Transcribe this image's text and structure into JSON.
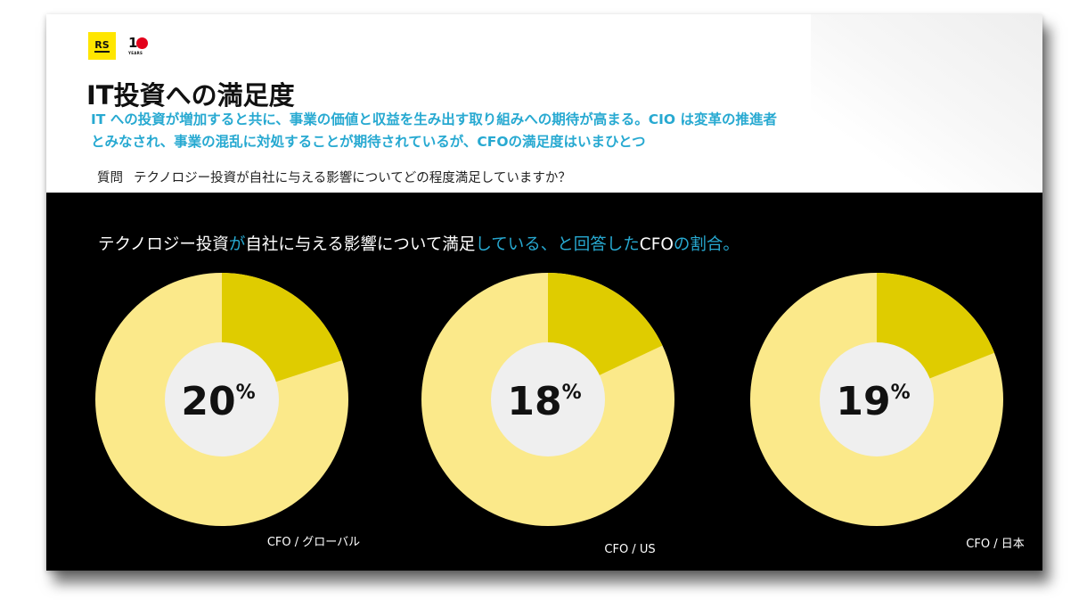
{
  "logo": {
    "rs_text": "RS",
    "anniversary_text": "1",
    "anniversary_sub": "YEARS"
  },
  "title": "IT投資への満足度",
  "subtitle_lines": [
    "IT への投資が増加すると共に、事業の価値と収益を生み出す取り組みへの期待が高まる。CIO は変革の推進者",
    "とみなされ、事業の混乱に対処することが期待されているが、CFOの満足度はいまひとつ"
  ],
  "question": {
    "label": "質問",
    "text": "テクノロジー投資が自社に与える影響についてどの程度満足していますか？"
  },
  "chart_heading": [
    {
      "text": "テクノロジー投資",
      "highlight": false
    },
    {
      "text": "が",
      "highlight": true
    },
    {
      "text": "自社に与える影響について満足",
      "highlight": false
    },
    {
      "text": "している、と回答した",
      "highlight": true
    },
    {
      "text": "CFO",
      "highlight": false
    },
    {
      "text": "の割合。",
      "highlight": true
    }
  ],
  "colors": {
    "accent": "#27a9d1",
    "satisfied": "#dfcc00",
    "rest": "#fbe98a",
    "center": "#efefef",
    "panel": "#000000",
    "logo_yellow": "#ffe600"
  },
  "chart_data": [
    {
      "type": "pie",
      "label": "CFO / グローバル",
      "value": 20,
      "display": "20",
      "unit": "%"
    },
    {
      "type": "pie",
      "label": "CFO / US",
      "value": 18,
      "display": "18",
      "unit": "%"
    },
    {
      "type": "pie",
      "label": "CFO / 日本",
      "value": 19,
      "display": "19",
      "unit": "%"
    }
  ]
}
